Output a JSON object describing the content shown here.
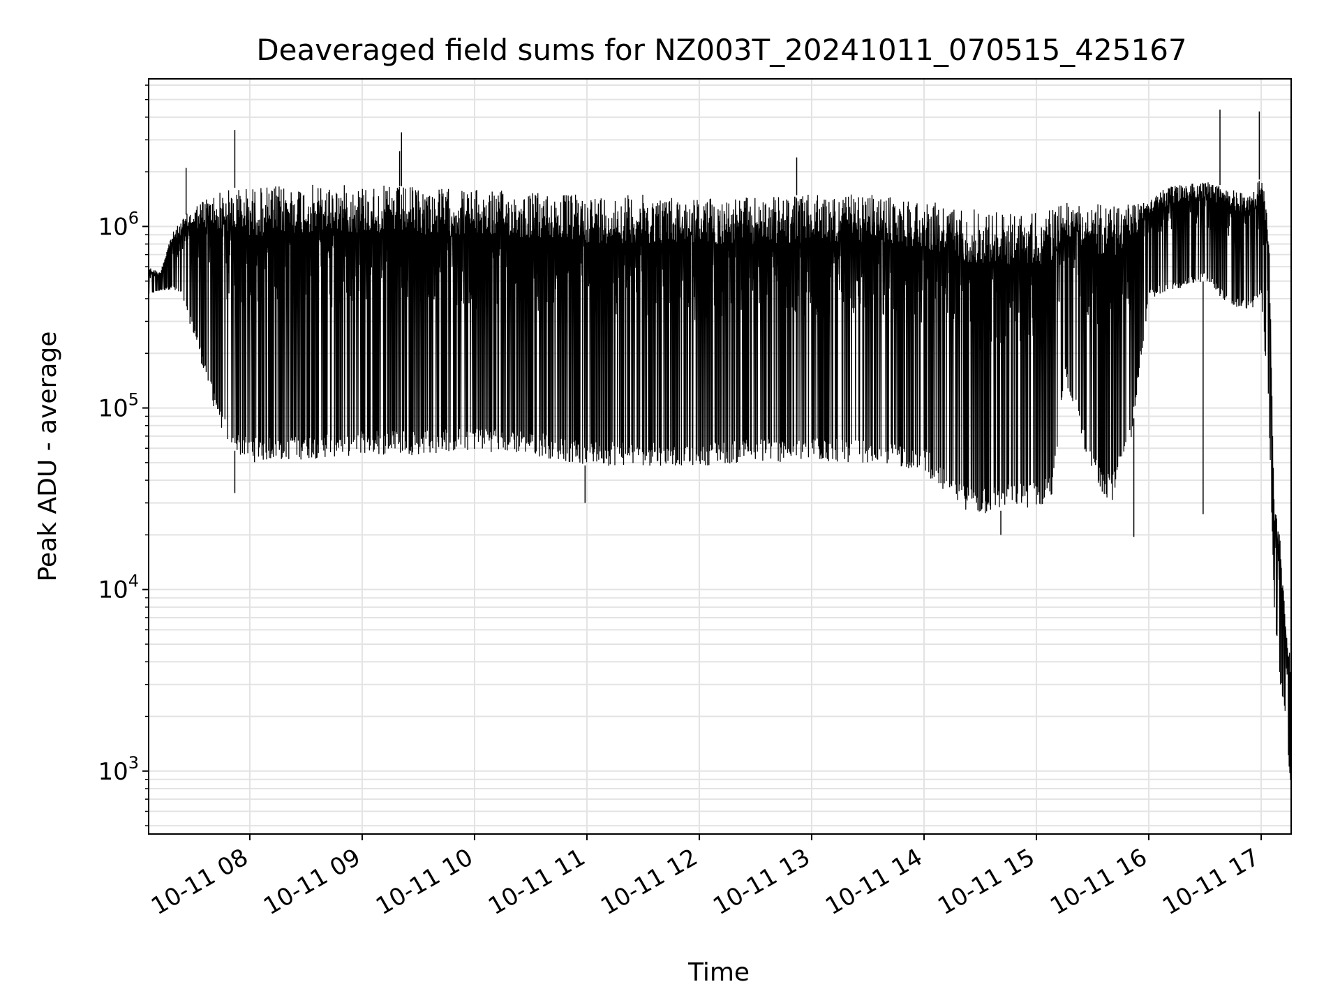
{
  "chart_data": {
    "type": "line",
    "title": "Deaveraged field sums for NZ003T_20241011_070515_425167",
    "xlabel": "Time",
    "ylabel": "Peak ADU - average",
    "yscale": "log",
    "ylim": [
      450,
      6500000
    ],
    "xlim": [
      "2024-10-11 07:06",
      "2024-10-11 17:16"
    ],
    "grid": true,
    "line_color": "#000000",
    "grid_color": "#e3e3e3",
    "x_ticks": [
      {
        "value": "2024-10-11 08:00",
        "label": "10-11 08"
      },
      {
        "value": "2024-10-11 09:00",
        "label": "10-11 09"
      },
      {
        "value": "2024-10-11 10:00",
        "label": "10-11 10"
      },
      {
        "value": "2024-10-11 11:00",
        "label": "10-11 11"
      },
      {
        "value": "2024-10-11 12:00",
        "label": "10-11 12"
      },
      {
        "value": "2024-10-11 13:00",
        "label": "10-11 13"
      },
      {
        "value": "2024-10-11 14:00",
        "label": "10-11 14"
      },
      {
        "value": "2024-10-11 15:00",
        "label": "10-11 15"
      },
      {
        "value": "2024-10-11 16:00",
        "label": "10-11 16"
      },
      {
        "value": "2024-10-11 17:00",
        "label": "10-11 17"
      }
    ],
    "y_ticks": [
      {
        "value": 1000,
        "base": "10",
        "exp": "3"
      },
      {
        "value": 10000,
        "base": "10",
        "exp": "4"
      },
      {
        "value": 100000,
        "base": "10",
        "exp": "5"
      },
      {
        "value": 1000000,
        "base": "10",
        "exp": "6"
      }
    ],
    "envelope": {
      "time": [
        "2024-10-11 07:06",
        "2024-10-11 07:12",
        "2024-10-11 07:18",
        "2024-10-11 07:24",
        "2024-10-11 07:30",
        "2024-10-11 07:36",
        "2024-10-11 07:42",
        "2024-10-11 07:48",
        "2024-10-11 07:54",
        "2024-10-11 08:00",
        "2024-10-11 08:30",
        "2024-10-11 09:00",
        "2024-10-11 09:30",
        "2024-10-11 10:00",
        "2024-10-11 10:30",
        "2024-10-11 11:00",
        "2024-10-11 11:30",
        "2024-10-11 12:00",
        "2024-10-11 12:30",
        "2024-10-11 13:00",
        "2024-10-11 13:30",
        "2024-10-11 14:00",
        "2024-10-11 14:15",
        "2024-10-11 14:30",
        "2024-10-11 14:45",
        "2024-10-11 15:00",
        "2024-10-11 15:08",
        "2024-10-11 15:15",
        "2024-10-11 15:30",
        "2024-10-11 15:40",
        "2024-10-11 15:50",
        "2024-10-11 16:00",
        "2024-10-11 16:15",
        "2024-10-11 16:30",
        "2024-10-11 16:45",
        "2024-10-11 16:55",
        "2024-10-11 17:00",
        "2024-10-11 17:04",
        "2024-10-11 17:07",
        "2024-10-11 17:10",
        "2024-10-11 17:13",
        "2024-10-11 17:16"
      ],
      "upper": [
        600000,
        560000,
        900000,
        1100000,
        1300000,
        1450000,
        1550000,
        1600000,
        1650000,
        1650000,
        1700000,
        1700000,
        1650000,
        1600000,
        1550000,
        1500000,
        1500000,
        1450000,
        1450000,
        1500000,
        1500000,
        1400000,
        1300000,
        1250000,
        1200000,
        1200000,
        1250000,
        1350000,
        1350000,
        1300000,
        1400000,
        1500000,
        1700000,
        1800000,
        1600000,
        1500000,
        1900000,
        1200000,
        30000,
        20000,
        7000,
        4000
      ],
      "lower": [
        420000,
        440000,
        450000,
        400000,
        250000,
        150000,
        90000,
        65000,
        55000,
        50000,
        52000,
        55000,
        55000,
        58000,
        55000,
        48000,
        48000,
        48000,
        50000,
        50000,
        50000,
        45000,
        30000,
        25000,
        28000,
        28000,
        30000,
        150000,
        40000,
        30000,
        60000,
        400000,
        450000,
        500000,
        350000,
        350000,
        400000,
        100000,
        8000,
        3000,
        2000,
        700
      ]
    },
    "spikes": [
      {
        "time": "2024-10-11 07:26",
        "value": 2100000
      },
      {
        "time": "2024-10-11 07:52",
        "value": 3400000
      },
      {
        "time": "2024-10-11 09:20",
        "value": 2600000
      },
      {
        "time": "2024-10-11 09:21",
        "value": 3300000
      },
      {
        "time": "2024-10-11 12:52",
        "value": 2400000
      },
      {
        "time": "2024-10-11 16:38",
        "value": 4400000
      },
      {
        "time": "2024-10-11 16:59",
        "value": 4300000
      },
      {
        "time": "2024-10-11 07:52",
        "value": 34000
      },
      {
        "time": "2024-10-11 10:59",
        "value": 30000
      },
      {
        "time": "2024-10-11 14:41",
        "value": 20000
      },
      {
        "time": "2024-10-11 15:52",
        "value": 19500
      },
      {
        "time": "2024-10-11 16:29",
        "value": 26000
      }
    ]
  }
}
